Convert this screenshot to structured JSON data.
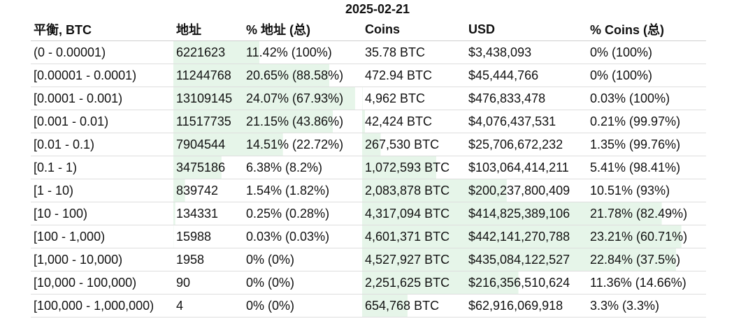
{
  "title": "2025-02-21",
  "headers": [
    "平衡, BTC",
    "地址",
    "% 地址 (总)",
    "Coins",
    "USD",
    "% Coins (总)"
  ],
  "bar_color": "#e6f5e9",
  "rows": [
    {
      "range": "(0 - 0.00001)",
      "addresses": "6221623",
      "pct_addresses": "11.42% (100%)",
      "coins": "35.78 BTC",
      "usd": "$3,438,093",
      "pct_coins": "0% (100%)",
      "addr_share": 0.1142,
      "coin_share": 0
    },
    {
      "range": "[0.00001 - 0.0001)",
      "addresses": "11244768",
      "pct_addresses": "20.65% (88.58%)",
      "coins": "472.94 BTC",
      "usd": "$45,444,766",
      "pct_coins": "0% (100%)",
      "addr_share": 0.2065,
      "coin_share": 0
    },
    {
      "range": "[0.0001 - 0.001)",
      "addresses": "13109145",
      "pct_addresses": "24.07% (67.93%)",
      "coins": "4,962 BTC",
      "usd": "$476,833,478",
      "pct_coins": "0.03% (100%)",
      "addr_share": 0.2407,
      "coin_share": 0.0003
    },
    {
      "range": "[0.001 - 0.01)",
      "addresses": "11517735",
      "pct_addresses": "21.15% (43.86%)",
      "coins": "42,424 BTC",
      "usd": "$4,076,437,531",
      "pct_coins": "0.21% (99.97%)",
      "addr_share": 0.2115,
      "coin_share": 0.0021
    },
    {
      "range": "[0.01 - 0.1)",
      "addresses": "7904544",
      "pct_addresses": "14.51% (22.72%)",
      "coins": "267,530 BTC",
      "usd": "$25,706,672,232",
      "pct_coins": "1.35% (99.76%)",
      "addr_share": 0.1451,
      "coin_share": 0.0135
    },
    {
      "range": "[0.1 - 1)",
      "addresses": "3475186",
      "pct_addresses": "6.38% (8.2%)",
      "coins": "1,072,593 BTC",
      "usd": "$103,064,414,211",
      "pct_coins": "5.41% (98.41%)",
      "addr_share": 0.0638,
      "coin_share": 0.0541
    },
    {
      "range": "[1 - 10)",
      "addresses": "839742",
      "pct_addresses": "1.54% (1.82%)",
      "coins": "2,083,878 BTC",
      "usd": "$200,237,800,409",
      "pct_coins": "10.51% (93%)",
      "addr_share": 0.0154,
      "coin_share": 0.1051
    },
    {
      "range": "[10 - 100)",
      "addresses": "134331",
      "pct_addresses": "0.25% (0.28%)",
      "coins": "4,317,094 BTC",
      "usd": "$414,825,389,106",
      "pct_coins": "21.78% (82.49%)",
      "addr_share": 0.0025,
      "coin_share": 0.2178
    },
    {
      "range": "[100 - 1,000)",
      "addresses": "15988",
      "pct_addresses": "0.03% (0.03%)",
      "coins": "4,601,371 BTC",
      "usd": "$442,141,270,788",
      "pct_coins": "23.21% (60.71%)",
      "addr_share": 0.0003,
      "coin_share": 0.2321
    },
    {
      "range": "[1,000 - 10,000)",
      "addresses": "1958",
      "pct_addresses": "0% (0%)",
      "coins": "4,527,927 BTC",
      "usd": "$435,084,122,527",
      "pct_coins": "22.84% (37.5%)",
      "addr_share": 0,
      "coin_share": 0.2284
    },
    {
      "range": "[10,000 - 100,000)",
      "addresses": "90",
      "pct_addresses": "0% (0%)",
      "coins": "2,251,625 BTC",
      "usd": "$216,356,510,624",
      "pct_coins": "11.36% (14.66%)",
      "addr_share": 0,
      "coin_share": 0.1136
    },
    {
      "range": "[100,000 - 1,000,000)",
      "addresses": "4",
      "pct_addresses": "0% (0%)",
      "coins": "654,768 BTC",
      "usd": "$62,916,069,918",
      "pct_coins": "3.3% (3.3%)",
      "addr_share": 0,
      "coin_share": 0.033
    }
  ]
}
